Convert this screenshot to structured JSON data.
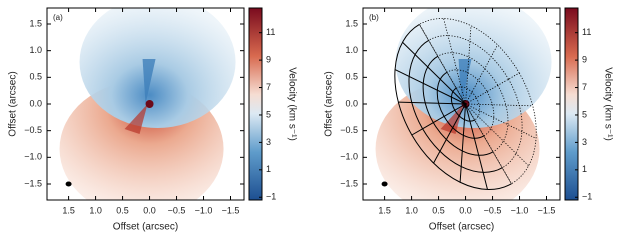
{
  "chart_data": [
    {
      "type": "image",
      "panel_label": "(a)",
      "xlabel": "Offset   (arcsec)",
      "ylabel": "Offset   (arcsec)",
      "xlim": [
        1.9,
        -1.75
      ],
      "xticks": [
        1.5,
        {
          "value": 1,
          "label": "1.0"
        },
        0.5,
        {
          "value": 0,
          "label": "0.0"
        },
        {
          "value": -0.5,
          "label": "−0.5"
        },
        {
          "value": -1,
          "label": "−1.0"
        },
        {
          "value": -1.5,
          "label": "−1.5"
        }
      ],
      "ylim": [
        -1.8,
        1.8
      ],
      "yticks": [
        {
          "value": -1.5,
          "label": "−1.5"
        },
        {
          "value": -1,
          "label": "−1.0"
        },
        {
          "value": -0.5,
          "label": "−0.5"
        },
        {
          "value": 0,
          "label": "0.0"
        },
        0.5,
        {
          "value": 1,
          "label": "1.0"
        },
        1.5
      ],
      "colorbar": {
        "label": "Velocity   (km s⁻¹)",
        "lim": [
          -1.2,
          12.8
        ],
        "ticks": [
          {
            "value": -1,
            "label": "−1"
          },
          1,
          3,
          5,
          7,
          9,
          11
        ]
      }
    },
    {
      "type": "image",
      "panel_label": "(b)",
      "xlabel": "Offset   (arcsec)",
      "ylabel": "Offset   (arcsec)",
      "xlim": [
        1.9,
        -1.75
      ],
      "xticks": [
        1.5,
        {
          "value": 1,
          "label": "1.0"
        },
        0.5,
        {
          "value": 0,
          "label": "0.0"
        },
        {
          "value": -0.5,
          "label": "−0.5"
        },
        {
          "value": -1,
          "label": "−1.0"
        },
        {
          "value": -1.5,
          "label": "−1.5"
        }
      ],
      "ylim": [
        -1.8,
        1.8
      ],
      "yticks": [
        {
          "value": -1.5,
          "label": "−1.5"
        },
        {
          "value": -1,
          "label": "−1.0"
        },
        {
          "value": -0.5,
          "label": "−0.5"
        },
        {
          "value": 0,
          "label": "0.0"
        },
        0.5,
        {
          "value": 1,
          "label": "1.0"
        },
        1.5
      ],
      "colorbar": {
        "label": "Velocity   (km s⁻¹)",
        "lim": [
          -1.2,
          12.8
        ],
        "ticks": [
          {
            "value": -1,
            "label": "−1"
          },
          1,
          3,
          5,
          7,
          9,
          11
        ]
      },
      "disk_grid": true
    }
  ]
}
